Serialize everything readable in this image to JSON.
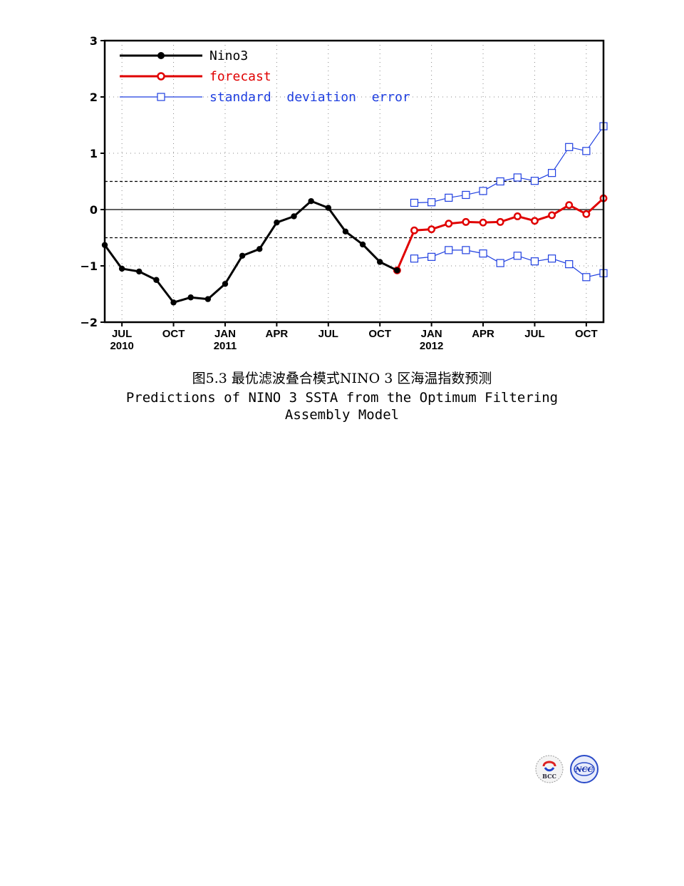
{
  "chart_data": {
    "type": "line",
    "x": [
      "2010-06",
      "2010-07",
      "2010-08",
      "2010-09",
      "2010-10",
      "2010-11",
      "2010-12",
      "2011-01",
      "2011-02",
      "2011-03",
      "2011-04",
      "2011-05",
      "2011-06",
      "2011-07",
      "2011-08",
      "2011-09",
      "2011-10",
      "2011-11",
      "2011-12",
      "2012-01",
      "2012-02",
      "2012-03",
      "2012-04",
      "2012-05",
      "2012-06",
      "2012-07",
      "2012-08",
      "2012-09",
      "2012-10",
      "2012-11"
    ],
    "ylim": [
      -2,
      3
    ],
    "yticks": [
      "3",
      "2",
      "1",
      "0",
      "−1",
      "−2"
    ],
    "ytick_values": [
      3,
      2,
      1,
      0,
      -1,
      -2
    ],
    "xticks": [
      {
        "x": "2010-07",
        "month": "JUL",
        "year": "2010"
      },
      {
        "x": "2010-10",
        "month": "OCT",
        "year": ""
      },
      {
        "x": "2011-01",
        "month": "JAN",
        "year": "2011"
      },
      {
        "x": "2011-04",
        "month": "APR",
        "year": ""
      },
      {
        "x": "2011-07",
        "month": "JUL",
        "year": ""
      },
      {
        "x": "2011-10",
        "month": "OCT",
        "year": ""
      },
      {
        "x": "2012-01",
        "month": "JAN",
        "year": "2012"
      },
      {
        "x": "2012-04",
        "month": "APR",
        "year": ""
      },
      {
        "x": "2012-07",
        "month": "JUL",
        "year": ""
      },
      {
        "x": "2012-10",
        "month": "OCT",
        "year": ""
      }
    ],
    "reference_lines": [
      0.5,
      0,
      -0.5
    ],
    "grid": true,
    "legend_position": "top-left",
    "series": [
      {
        "name": "Nino3",
        "color": "#000000",
        "marker": "filled-circle",
        "x": [
          "2010-06",
          "2010-07",
          "2010-08",
          "2010-09",
          "2010-10",
          "2010-11",
          "2010-12",
          "2011-01",
          "2011-02",
          "2011-03",
          "2011-04",
          "2011-05",
          "2011-06",
          "2011-07",
          "2011-08",
          "2011-09",
          "2011-10",
          "2011-11"
        ],
        "values": [
          -0.63,
          -1.05,
          -1.1,
          -1.25,
          -1.65,
          -1.56,
          -1.59,
          -1.32,
          -0.82,
          -0.7,
          -0.23,
          -0.12,
          0.15,
          0.03,
          -0.39,
          -0.62,
          -0.93,
          -1.08
        ]
      },
      {
        "name": "forecast",
        "color": "#e00000",
        "marker": "open-circle",
        "x": [
          "2011-11",
          "2011-12",
          "2012-01",
          "2012-02",
          "2012-03",
          "2012-04",
          "2012-05",
          "2012-06",
          "2012-07",
          "2012-08",
          "2012-09",
          "2012-10",
          "2012-11"
        ],
        "values": [
          -1.08,
          -0.37,
          -0.35,
          -0.25,
          -0.22,
          -0.23,
          -0.22,
          -0.12,
          -0.2,
          -0.1,
          0.08,
          -0.08,
          0.2
        ]
      },
      {
        "name": "standard  deviation  error",
        "color": "#1f3fe0",
        "marker": "open-square",
        "x": [
          "2011-12",
          "2012-01",
          "2012-02",
          "2012-03",
          "2012-04",
          "2012-05",
          "2012-06",
          "2012-07",
          "2012-08",
          "2012-09",
          "2012-10",
          "2012-11"
        ],
        "values": [
          0.12,
          0.13,
          0.21,
          0.26,
          0.33,
          0.5,
          0.57,
          0.51,
          0.65,
          1.11,
          1.04,
          1.48
        ]
      },
      {
        "name": "",
        "color": "#1f3fe0",
        "marker": "open-square",
        "x": [
          "2011-12",
          "2012-01",
          "2012-02",
          "2012-03",
          "2012-04",
          "2012-05",
          "2012-06",
          "2012-07",
          "2012-08",
          "2012-09",
          "2012-10",
          "2012-11"
        ],
        "values": [
          -0.87,
          -0.84,
          -0.72,
          -0.72,
          -0.78,
          -0.95,
          -0.82,
          -0.92,
          -0.87,
          -0.97,
          -1.2,
          -1.13
        ]
      }
    ]
  },
  "caption": {
    "chinese": "图5.3  最优滤波叠合模式NINO 3 区海温指数预测",
    "english_line1": "Predictions of NINO 3 SSTA from the Optimum Filtering",
    "english_line2": "Assembly Model"
  },
  "logos": {
    "left_text": "BCC",
    "right_text": "NCC"
  }
}
